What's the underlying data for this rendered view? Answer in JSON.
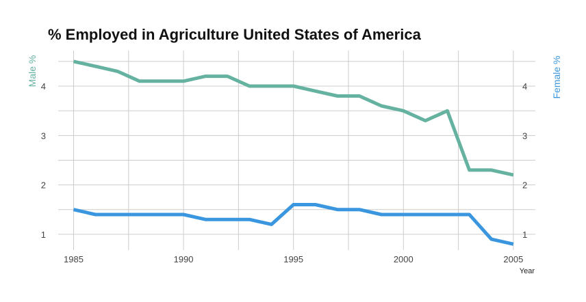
{
  "chart_data": {
    "type": "line",
    "title": "% Employed in Agriculture United States of America",
    "xlabel": "Year",
    "ylabel_left": "Male %",
    "ylabel_right": "Female %",
    "xlim": [
      1984.3,
      2006.0
    ],
    "ylim": [
      0.68,
      4.72
    ],
    "x_ticks": [
      1985,
      1990,
      1995,
      2000,
      2005
    ],
    "y_ticks": [
      1,
      2,
      3,
      4
    ],
    "grid": true,
    "x": [
      1985,
      1986,
      1987,
      1988,
      1989,
      1990,
      1991,
      1992,
      1993,
      1994,
      1995,
      1996,
      1997,
      1998,
      1999,
      2000,
      2001,
      2002,
      2003,
      2004,
      2005
    ],
    "series": [
      {
        "name": "Male %",
        "color": "#66b2a0",
        "values": [
          4.5,
          4.4,
          4.3,
          4.1,
          4.1,
          4.1,
          4.2,
          4.2,
          4.0,
          4.0,
          4.0,
          3.9,
          3.8,
          3.8,
          3.6,
          3.5,
          3.3,
          3.5,
          2.3,
          2.3,
          2.2
        ]
      },
      {
        "name": "Female %",
        "color": "#3a96de",
        "values": [
          1.5,
          1.4,
          1.4,
          1.4,
          1.4,
          1.4,
          1.3,
          1.3,
          1.3,
          1.2,
          1.6,
          1.6,
          1.5,
          1.5,
          1.4,
          1.4,
          1.4,
          1.4,
          1.4,
          0.9,
          0.8
        ]
      }
    ],
    "colors": {
      "grid": "#cccccc",
      "male_axis": "#66b2a0",
      "female_axis": "#3a96de"
    }
  }
}
